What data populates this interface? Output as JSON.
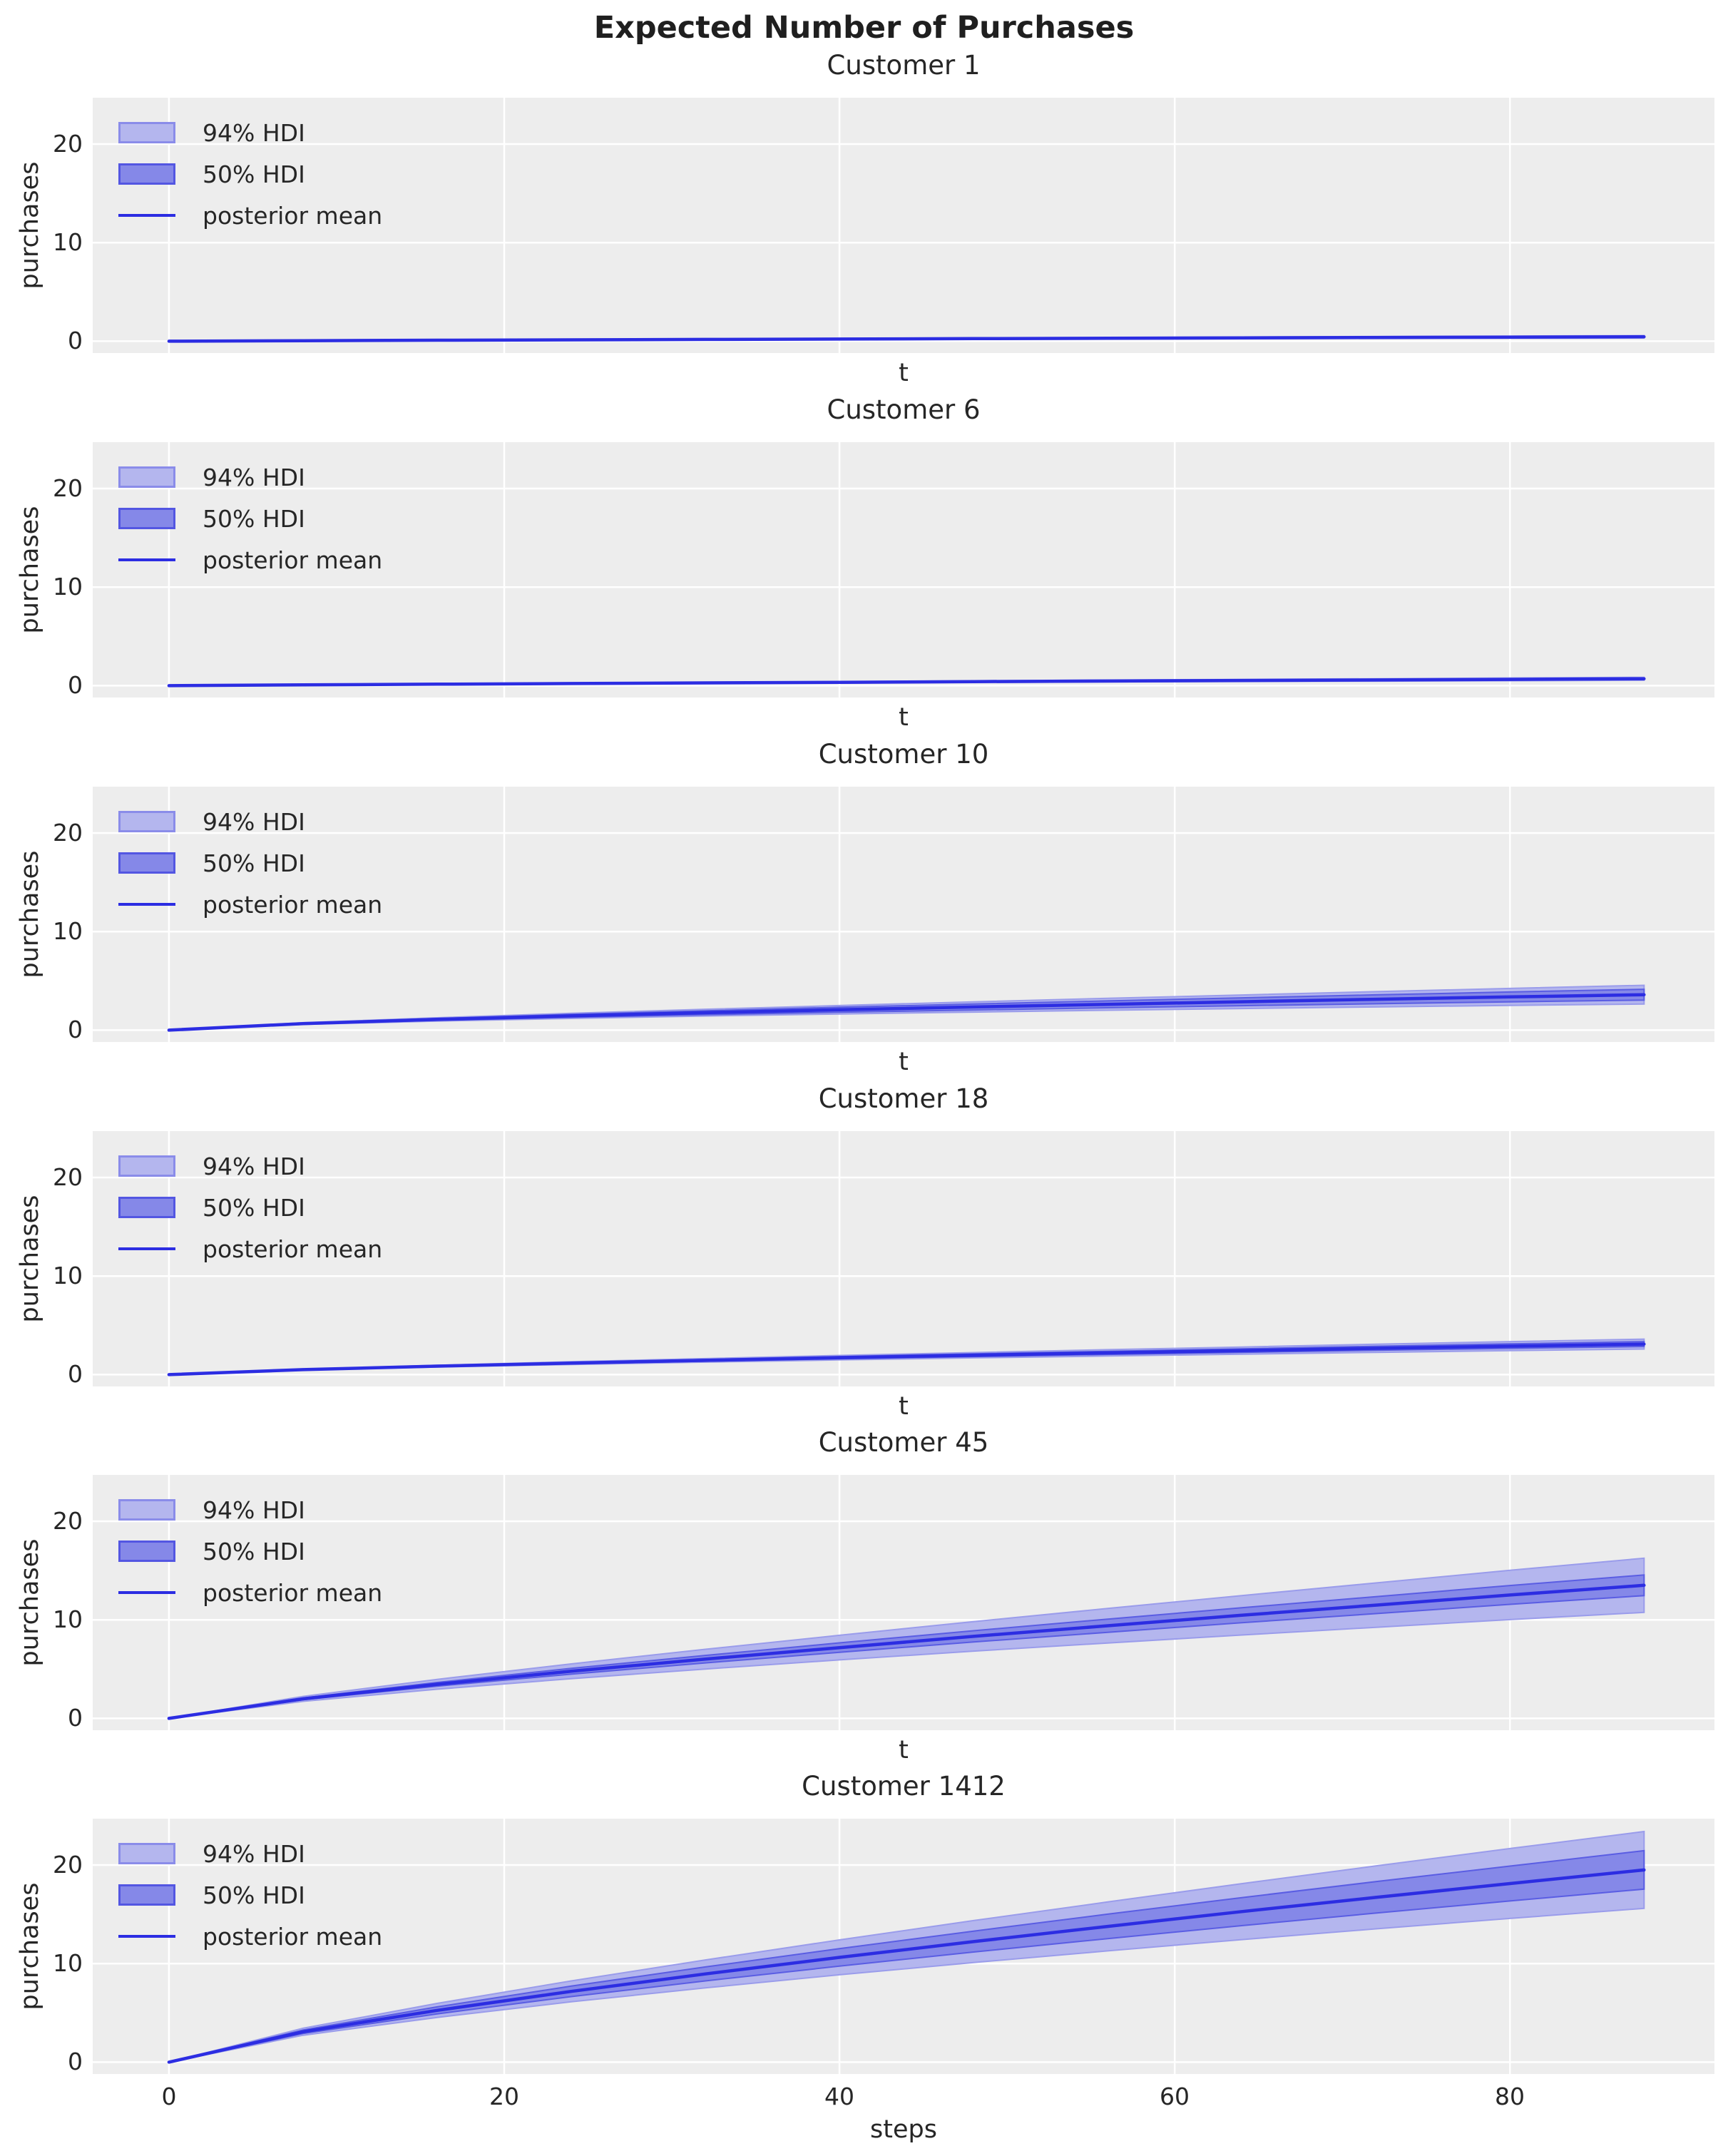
{
  "figure": {
    "title": "Expected Number of Purchases"
  },
  "legend": {
    "hdi94": "94% HDI",
    "hdi50": "50% HDI",
    "mean": "posterior mean"
  },
  "chart_data": {
    "type": "line",
    "title": "Expected Number of Purchases",
    "x": [
      0,
      8,
      16,
      24,
      32,
      40,
      48,
      56,
      64,
      72,
      80,
      88
    ],
    "axes": {
      "xlim": [
        -4.55,
        92.2
      ],
      "ylim": [
        -1.2,
        24.7
      ],
      "xticks": [
        0,
        20,
        40,
        60,
        80
      ],
      "yticks": [
        0,
        10,
        20
      ],
      "xtick_labels": [
        "0",
        "20",
        "40",
        "60",
        "80"
      ],
      "ytick_labels": [
        "0",
        "10",
        "20"
      ],
      "ylabel": "purchases",
      "grid": "on",
      "legend_position": "upper left"
    },
    "colors": {
      "band94": "#b4b6ee",
      "band94_edge": "#9a9ceb",
      "band50": "#8588e8",
      "band50_edge": "#5a5de3",
      "mean": "#2c2de2",
      "axes_bg": "#ededed",
      "grid": "#ffffff"
    },
    "customers": [
      {
        "title": "Customer 1",
        "xlabel": "t",
        "mean": [
          0,
          0.05,
          0.1,
          0.14,
          0.18,
          0.22,
          0.26,
          0.3,
          0.34,
          0.38,
          0.41,
          0.45
        ],
        "hdi94_lo": [
          0,
          0.04,
          0.08,
          0.11,
          0.14,
          0.17,
          0.19,
          0.22,
          0.25,
          0.28,
          0.3,
          0.33
        ],
        "hdi94_hi": [
          0,
          0.06,
          0.12,
          0.17,
          0.22,
          0.27,
          0.33,
          0.38,
          0.43,
          0.48,
          0.52,
          0.57
        ],
        "hdi50_lo": [
          0,
          0.05,
          0.09,
          0.13,
          0.17,
          0.2,
          0.24,
          0.27,
          0.31,
          0.35,
          0.37,
          0.41
        ],
        "hdi50_hi": [
          0,
          0.05,
          0.11,
          0.15,
          0.2,
          0.24,
          0.28,
          0.33,
          0.37,
          0.41,
          0.45,
          0.49
        ]
      },
      {
        "title": "Customer 6",
        "xlabel": "t",
        "mean": [
          0,
          0.08,
          0.15,
          0.22,
          0.28,
          0.34,
          0.41,
          0.47,
          0.53,
          0.58,
          0.64,
          0.7
        ],
        "hdi94_lo": [
          0,
          0.07,
          0.12,
          0.18,
          0.23,
          0.27,
          0.33,
          0.37,
          0.42,
          0.46,
          0.5,
          0.55
        ],
        "hdi94_hi": [
          0,
          0.09,
          0.18,
          0.26,
          0.33,
          0.41,
          0.49,
          0.57,
          0.64,
          0.7,
          0.78,
          0.85
        ],
        "hdi50_lo": [
          0,
          0.08,
          0.14,
          0.21,
          0.26,
          0.32,
          0.38,
          0.44,
          0.49,
          0.54,
          0.59,
          0.65
        ],
        "hdi50_hi": [
          0,
          0.08,
          0.16,
          0.23,
          0.3,
          0.36,
          0.44,
          0.5,
          0.57,
          0.62,
          0.69,
          0.75
        ]
      },
      {
        "title": "Customer 10",
        "xlabel": "t",
        "mean": [
          0,
          0.67,
          1.09,
          1.45,
          1.77,
          2.07,
          2.35,
          2.62,
          2.88,
          3.13,
          3.37,
          3.6
        ],
        "hdi94_lo": [
          0,
          0.58,
          0.92,
          1.19,
          1.43,
          1.64,
          1.83,
          2.02,
          2.19,
          2.35,
          2.51,
          2.65
        ],
        "hdi94_hi": [
          0,
          0.76,
          1.26,
          1.71,
          2.12,
          2.5,
          2.87,
          3.23,
          3.57,
          3.91,
          4.23,
          4.55
        ],
        "hdi50_lo": [
          0,
          0.62,
          0.99,
          1.3,
          1.57,
          1.82,
          2.05,
          2.27,
          2.48,
          2.68,
          2.87,
          3.05
        ],
        "hdi50_hi": [
          0,
          0.72,
          1.19,
          1.6,
          1.97,
          2.32,
          2.65,
          2.97,
          3.28,
          3.58,
          3.87,
          4.15
        ]
      },
      {
        "title": "Customer 18",
        "xlabel": "t",
        "mean": [
          0,
          0.51,
          0.86,
          1.17,
          1.45,
          1.72,
          1.97,
          2.21,
          2.44,
          2.67,
          2.89,
          3.1
        ],
        "hdi94_lo": [
          0,
          0.47,
          0.77,
          1.03,
          1.27,
          1.49,
          1.7,
          1.89,
          2.08,
          2.26,
          2.44,
          2.6
        ],
        "hdi94_hi": [
          0,
          0.56,
          0.95,
          1.31,
          1.63,
          1.95,
          2.24,
          2.53,
          2.8,
          3.08,
          3.35,
          3.6
        ],
        "hdi50_lo": [
          0,
          0.49,
          0.82,
          1.1,
          1.36,
          1.61,
          1.83,
          2.05,
          2.26,
          2.47,
          2.66,
          2.85
        ],
        "hdi50_hi": [
          0,
          0.53,
          0.91,
          1.24,
          1.54,
          1.83,
          2.11,
          2.37,
          2.62,
          2.88,
          3.12,
          3.35
        ]
      },
      {
        "title": "Customer 45",
        "xlabel": "t",
        "mean": [
          0,
          1.98,
          3.46,
          4.78,
          6.01,
          7.18,
          8.32,
          9.4,
          10.46,
          11.49,
          12.52,
          13.5
        ],
        "hdi94_lo": [
          0,
          1.73,
          2.96,
          4.03,
          5.01,
          5.93,
          6.82,
          7.65,
          8.46,
          9.24,
          10.02,
          10.75
        ],
        "hdi94_hi": [
          0,
          2.23,
          3.96,
          5.53,
          7.01,
          8.43,
          9.82,
          11.15,
          12.46,
          13.74,
          15.02,
          16.25
        ],
        "hdi50_lo": [
          0,
          1.89,
          3.27,
          4.49,
          5.63,
          6.7,
          7.75,
          8.73,
          9.7,
          10.63,
          11.57,
          12.45
        ],
        "hdi50_hi": [
          0,
          2.08,
          3.65,
          5.07,
          6.39,
          7.66,
          8.89,
          10.07,
          11.22,
          12.35,
          13.48,
          14.55
        ]
      },
      {
        "title": "Customer 1412",
        "xlabel": "steps",
        "mean": [
          0,
          3.08,
          5.25,
          7.18,
          8.95,
          10.63,
          12.23,
          13.77,
          15.27,
          16.71,
          18.12,
          19.5
        ],
        "hdi94_lo": [
          0,
          2.73,
          4.54,
          6.12,
          7.53,
          8.86,
          10.1,
          11.29,
          12.43,
          13.52,
          14.58,
          15.6
        ],
        "hdi94_hi": [
          0,
          3.44,
          5.96,
          8.24,
          10.37,
          12.4,
          14.36,
          16.25,
          18.11,
          19.9,
          21.67,
          23.4
        ],
        "hdi50_lo": [
          0,
          2.9,
          4.9,
          6.65,
          8.24,
          9.74,
          11.17,
          12.53,
          13.85,
          15.12,
          16.35,
          17.55
        ],
        "hdi50_hi": [
          0,
          3.26,
          5.61,
          7.71,
          9.66,
          11.52,
          13.29,
          15.01,
          16.69,
          18.31,
          19.89,
          21.45
        ]
      }
    ]
  }
}
